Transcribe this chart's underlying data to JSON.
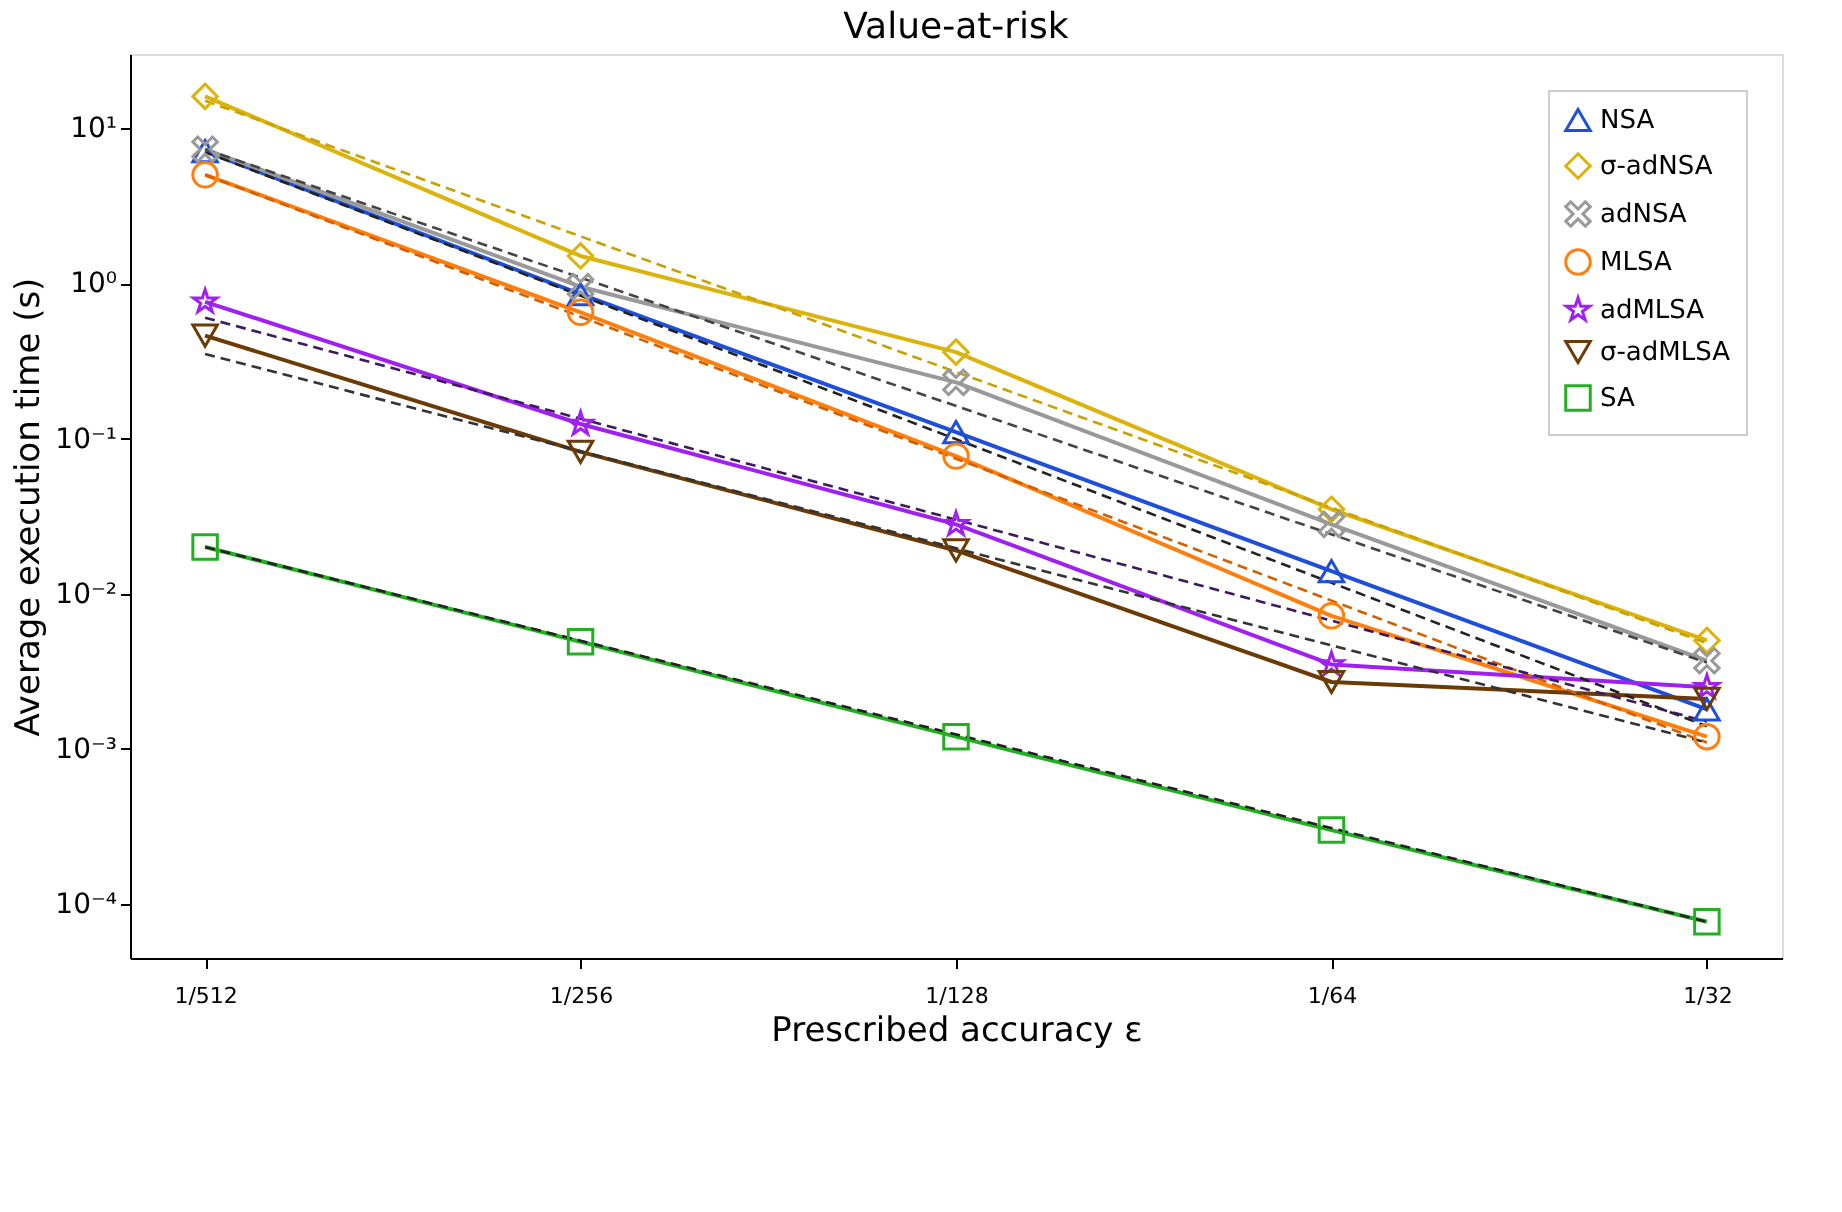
{
  "chart_data": {
    "type": "line",
    "title": "Value-at-risk",
    "xlabel": "Prescribed accuracy ε",
    "ylabel": "Average execution time (s)",
    "categories": [
      "1/512",
      "1/256",
      "1/128",
      "1/64",
      "1/32"
    ],
    "log": "y",
    "grid": false,
    "legend": "top right",
    "ylim": [
      4.5e-05,
      30
    ],
    "yticks": [
      {
        "value": 10,
        "label": "10¹"
      },
      {
        "value": 1,
        "label": "10⁰"
      },
      {
        "value": 0.1,
        "label": "10⁻¹"
      },
      {
        "value": 0.01,
        "label": "10⁻²"
      },
      {
        "value": 0.001,
        "label": "10⁻³"
      },
      {
        "value": 0.0001,
        "label": "10⁻⁴"
      }
    ],
    "series": [
      {
        "name": "NSA",
        "color": "#1f4fd8",
        "marker": "triangle",
        "line_style": "solid",
        "values": [
          7.1,
          0.85,
          0.11,
          0.014,
          0.0018
        ]
      },
      {
        "name": "σ-adNSA",
        "color": "#dbb30b",
        "marker": "diamond",
        "line_style": "solid",
        "values": [
          16,
          1.5,
          0.36,
          0.035,
          0.005
        ]
      },
      {
        "name": "adNSA",
        "color": "#999999",
        "marker": "cross",
        "line_style": "solid",
        "values": [
          7.3,
          0.95,
          0.23,
          0.028,
          0.0037
        ]
      },
      {
        "name": "MLSA",
        "color": "#ff7f0e",
        "marker": "circle",
        "line_style": "solid",
        "values": [
          5.0,
          0.65,
          0.077,
          0.0072,
          0.0012
        ]
      },
      {
        "name": "adMLSA",
        "color": "#a020f0",
        "marker": "star",
        "line_style": "solid",
        "values": [
          0.76,
          0.124,
          0.028,
          0.0035,
          0.0025
        ]
      },
      {
        "name": "σ-adMLSA",
        "color": "#6b3a05",
        "marker": "triangle-down",
        "line_style": "solid",
        "values": [
          0.46,
          0.082,
          0.019,
          0.0027,
          0.0021
        ]
      },
      {
        "name": "SA",
        "color": "#22b022",
        "marker": "square",
        "line_style": "solid",
        "values": [
          0.02,
          0.0049,
          0.0012,
          0.0003,
          7.7e-05
        ]
      },
      {
        "color": "#c8a000",
        "marker": "none",
        "line_style": "dashed",
        "x": [
          "1/512",
          "1/32"
        ],
        "values": [
          15,
          0.0048
        ]
      },
      {
        "color": "#444444",
        "marker": "none",
        "line_style": "dashed",
        "x": [
          "1/512",
          "1/32"
        ],
        "values": [
          7.3,
          0.0036
        ]
      },
      {
        "color": "#222222",
        "marker": "none",
        "line_style": "dashed",
        "x": [
          "1/512",
          "1/32"
        ],
        "values": [
          7.0,
          0.0014
        ]
      },
      {
        "color": "#d45f00",
        "marker": "none",
        "line_style": "dashed",
        "x": [
          "1/512",
          "1/32"
        ],
        "values": [
          5.0,
          0.0011
        ]
      },
      {
        "color": "#3d1a5e",
        "marker": "none",
        "line_style": "dashed",
        "x": [
          "1/512",
          "1/32"
        ],
        "values": [
          0.6,
          0.0015
        ]
      },
      {
        "color": "#333333",
        "marker": "none",
        "line_style": "dashed",
        "x": [
          "1/512",
          "1/32"
        ],
        "values": [
          0.35,
          0.0011
        ]
      },
      {
        "color": "#222222",
        "marker": "none",
        "line_style": "dashed",
        "x": [
          "1/512",
          "1/32"
        ],
        "values": [
          0.02,
          7.7e-05
        ]
      }
    ]
  }
}
